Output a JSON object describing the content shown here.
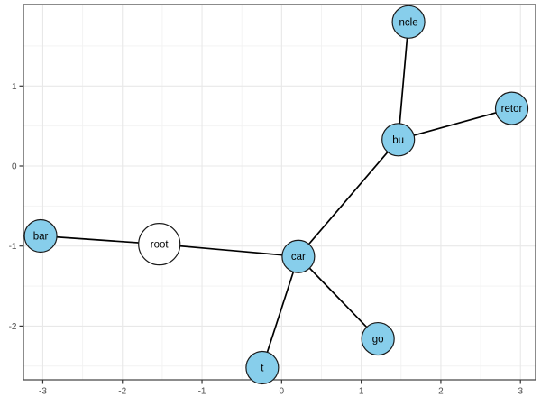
{
  "chart_data": {
    "type": "scatter",
    "subtype": "network-graph",
    "title": "",
    "xlabel": "",
    "ylabel": "",
    "xlim": [
      -3.243,
      3.19
    ],
    "ylim": [
      -2.672,
      2.018
    ],
    "x_ticks": [
      -3,
      -2,
      -1,
      0,
      1,
      2,
      3
    ],
    "y_ticks": [
      -2,
      -1,
      0,
      1
    ],
    "x_minor_ticks": [
      -2.5,
      -1.5,
      -0.5,
      0.5,
      1.5,
      2.5
    ],
    "y_minor_ticks": [
      -2.5,
      -1.5,
      -0.5,
      0.5,
      1.5
    ],
    "grid": "on",
    "legend": "none",
    "nodes": [
      {
        "id": "root",
        "label": "root",
        "x": -1.536,
        "y": -0.977,
        "r": 23,
        "fill": "#ffffff"
      },
      {
        "id": "bar",
        "label": "bar",
        "x": -3.027,
        "y": -0.874,
        "r": 18,
        "fill": "#87ceeb"
      },
      {
        "id": "car",
        "label": "car",
        "x": 0.21,
        "y": -1.13,
        "r": 18,
        "fill": "#87ceeb"
      },
      {
        "id": "t",
        "label": "t",
        "x": -0.243,
        "y": -2.52,
        "r": 18,
        "fill": "#87ceeb"
      },
      {
        "id": "go",
        "label": "go",
        "x": 1.21,
        "y": -2.16,
        "r": 18,
        "fill": "#87ceeb"
      },
      {
        "id": "bu",
        "label": "bu",
        "x": 1.465,
        "y": 0.329,
        "r": 18,
        "fill": "#87ceeb"
      },
      {
        "id": "ncle",
        "label": "ncle",
        "x": 1.594,
        "y": 1.8,
        "r": 18,
        "fill": "#87ceeb"
      },
      {
        "id": "retor",
        "label": "retor",
        "x": 2.89,
        "y": 0.72,
        "r": 18,
        "fill": "#87ceeb"
      }
    ],
    "edges": [
      {
        "from": "root",
        "to": "bar"
      },
      {
        "from": "root",
        "to": "car"
      },
      {
        "from": "car",
        "to": "bu"
      },
      {
        "from": "car",
        "to": "t"
      },
      {
        "from": "car",
        "to": "go"
      },
      {
        "from": "bu",
        "to": "ncle"
      },
      {
        "from": "bu",
        "to": "retor"
      }
    ],
    "colors": {
      "node_fill": "#87ceeb",
      "root_fill": "#ffffff",
      "node_stroke": "#1a1a1a",
      "edge": "#000000",
      "grid_major": "#e8e8e8",
      "grid_minor": "#f2f2f2",
      "panel_border": "#4d4d4d",
      "tick": "#333333",
      "tick_label": "#4d4d4d",
      "node_label": "#000000",
      "panel_bg": "#ffffff"
    }
  }
}
